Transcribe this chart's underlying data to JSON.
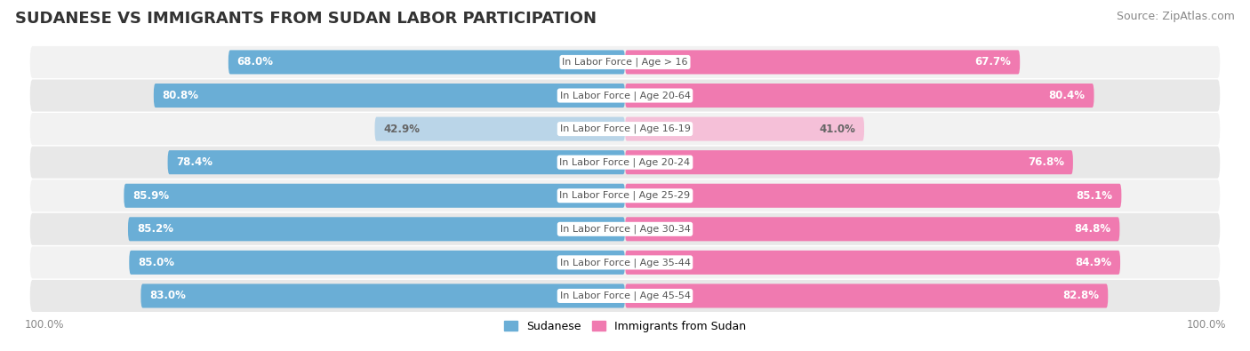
{
  "title": "SUDANESE VS IMMIGRANTS FROM SUDAN LABOR PARTICIPATION",
  "source": "Source: ZipAtlas.com",
  "categories": [
    "In Labor Force | Age > 16",
    "In Labor Force | Age 20-64",
    "In Labor Force | Age 16-19",
    "In Labor Force | Age 20-24",
    "In Labor Force | Age 25-29",
    "In Labor Force | Age 30-34",
    "In Labor Force | Age 35-44",
    "In Labor Force | Age 45-54"
  ],
  "sudanese_values": [
    68.0,
    80.8,
    42.9,
    78.4,
    85.9,
    85.2,
    85.0,
    83.0
  ],
  "immigrants_values": [
    67.7,
    80.4,
    41.0,
    76.8,
    85.1,
    84.8,
    84.9,
    82.8
  ],
  "sudanese_color": "#6aaed6",
  "sudanese_light_color": "#bad5e8",
  "immigrants_color": "#f07ab0",
  "immigrants_light_color": "#f5c0d8",
  "row_bg_color_odd": "#f2f2f2",
  "row_bg_color_even": "#e8e8e8",
  "max_value": 100.0,
  "label_color_white": "#ffffff",
  "label_color_dark": "#666666",
  "center_label_color": "#555555",
  "background_color": "#ffffff",
  "title_fontsize": 13,
  "source_fontsize": 9,
  "bar_label_fontsize": 8.5,
  "category_fontsize": 8,
  "legend_fontsize": 9,
  "axis_label_fontsize": 8.5,
  "light_rows": [
    2
  ]
}
